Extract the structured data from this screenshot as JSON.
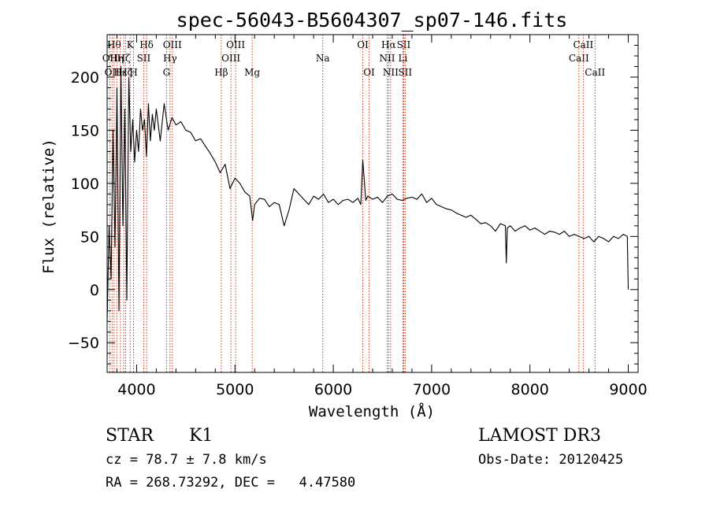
{
  "chart_data": {
    "type": "line",
    "title": "spec-56043-B5604307_sp07-146.fits",
    "xlabel": "Wavelength (Å)",
    "ylabel": "Flux (relative)",
    "xlim": [
      3700,
      9100
    ],
    "ylim": [
      -78,
      240
    ],
    "xticks": [
      4000,
      5000,
      6000,
      7000,
      8000,
      9000
    ],
    "yticks": [
      -50,
      0,
      50,
      100,
      150,
      200
    ],
    "series": [
      {
        "name": "flux",
        "x": [
          3700,
          3720,
          3740,
          3760,
          3780,
          3800,
          3820,
          3840,
          3860,
          3880,
          3900,
          3920,
          3940,
          3960,
          3980,
          4000,
          4020,
          4040,
          4060,
          4080,
          4100,
          4120,
          4140,
          4160,
          4180,
          4200,
          4240,
          4280,
          4320,
          4360,
          4400,
          4450,
          4500,
          4550,
          4600,
          4650,
          4700,
          4750,
          4800,
          4850,
          4900,
          4950,
          5000,
          5050,
          5100,
          5150,
          5180,
          5200,
          5250,
          5300,
          5350,
          5400,
          5450,
          5500,
          5550,
          5600,
          5650,
          5700,
          5750,
          5800,
          5850,
          5900,
          5950,
          6000,
          6050,
          6100,
          6150,
          6200,
          6250,
          6280,
          6300,
          6330,
          6350,
          6400,
          6450,
          6500,
          6550,
          6600,
          6650,
          6700,
          6750,
          6800,
          6850,
          6900,
          6950,
          7000,
          7050,
          7100,
          7150,
          7200,
          7250,
          7300,
          7350,
          7400,
          7450,
          7500,
          7550,
          7600,
          7650,
          7700,
          7750,
          7760,
          7770,
          7800,
          7850,
          7900,
          7950,
          8000,
          8050,
          8100,
          8150,
          8200,
          8250,
          8300,
          8350,
          8400,
          8450,
          8500,
          8550,
          8600,
          8650,
          8700,
          8750,
          8800,
          8850,
          8900,
          8950,
          8990,
          9000
        ],
        "values": [
          -30,
          60,
          10,
          150,
          40,
          190,
          -20,
          210,
          60,
          170,
          -10,
          200,
          130,
          160,
          120,
          150,
          130,
          170,
          150,
          160,
          125,
          175,
          140,
          165,
          150,
          170,
          140,
          175,
          150,
          162,
          155,
          158,
          150,
          148,
          140,
          142,
          135,
          128,
          120,
          110,
          118,
          95,
          105,
          100,
          92,
          88,
          65,
          80,
          86,
          85,
          78,
          82,
          80,
          60,
          75,
          95,
          90,
          85,
          80,
          88,
          85,
          90,
          82,
          85,
          80,
          84,
          85,
          82,
          86,
          80,
          122,
          84,
          88,
          85,
          87,
          82,
          88,
          90,
          85,
          84,
          86,
          87,
          85,
          90,
          82,
          86,
          80,
          78,
          76,
          75,
          72,
          70,
          68,
          70,
          66,
          62,
          63,
          60,
          55,
          62,
          60,
          25,
          58,
          60,
          55,
          58,
          60,
          56,
          58,
          55,
          52,
          55,
          54,
          52,
          55,
          50,
          52,
          50,
          48,
          50,
          45,
          50,
          48,
          45,
          50,
          48,
          52,
          50,
          0
        ]
      }
    ],
    "lines": [
      {
        "wave": 3727,
        "label": "OII",
        "row": 2
      },
      {
        "wave": 3750,
        "label": "OII",
        "row": 3
      },
      {
        "wave": 3771,
        "label": "Hθ",
        "row": 1
      },
      {
        "wave": 3798,
        "label": "Hη",
        "row": 2
      },
      {
        "wave": 3835,
        "label": "Hε",
        "row": 3
      },
      {
        "wave": 3869,
        "label": "Hζ",
        "row": 2
      },
      {
        "wave": 3889,
        "label": "Hζ",
        "row": 3
      },
      {
        "wave": 3934,
        "label": "K",
        "row": 1
      },
      {
        "wave": 3969,
        "label": "H",
        "row": 3
      },
      {
        "wave": 4101,
        "label": "Hδ",
        "row": 1
      },
      {
        "wave": 4072,
        "label": "SII",
        "row": 2
      },
      {
        "wave": 4304,
        "label": "G",
        "row": 3
      },
      {
        "wave": 4340,
        "label": "Hγ",
        "row": 2
      },
      {
        "wave": 4363,
        "label": "OIII",
        "row": 1
      },
      {
        "wave": 4861,
        "label": "Hβ",
        "row": 3
      },
      {
        "wave": 4959,
        "label": "OIII",
        "row": 2
      },
      {
        "wave": 5007,
        "label": "OIII",
        "row": 1
      },
      {
        "wave": 5175,
        "label": "Mg",
        "row": 3
      },
      {
        "wave": 5893,
        "label": "Na",
        "row": 2
      },
      {
        "wave": 6300,
        "label": "OI",
        "row": 1
      },
      {
        "wave": 6364,
        "label": "OI",
        "row": 3
      },
      {
        "wave": 6548,
        "label": "NII",
        "row": 2
      },
      {
        "wave": 6563,
        "label": "Hα",
        "row": 1
      },
      {
        "wave": 6583,
        "label": "NII",
        "row": 3
      },
      {
        "wave": 6708,
        "label": "Li",
        "row": 2
      },
      {
        "wave": 6716,
        "label": "SII",
        "row": 1
      },
      {
        "wave": 6731,
        "label": "SII",
        "row": 3
      },
      {
        "wave": 8498,
        "label": "CaII",
        "row": 2
      },
      {
        "wave": 8542,
        "label": "CaII",
        "row": 1
      },
      {
        "wave": 8662,
        "label": "CaII",
        "row": 3
      }
    ]
  },
  "info": {
    "object_class": "STAR",
    "subclass": "K1",
    "survey": "LAMOST DR3",
    "velocity": "cz = 78.7 ± 7.8 km/s",
    "obs_date": "Obs-Date: 20120425",
    "coords": "RA = 268.73292, DEC =   4.47580"
  }
}
